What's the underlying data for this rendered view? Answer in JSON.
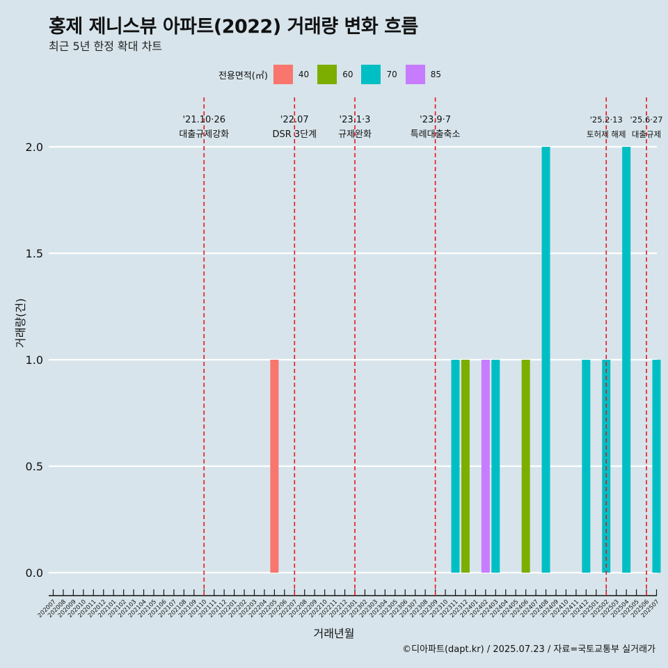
{
  "title": "홍제 제니스뷰 아파트(2022) 거래량 변화 흐름",
  "subtitle": "최근 5년 한정 확대 차트",
  "caption": "©디아파트(dapt.kr) / 2025.07.23 / 자료=국토교통부 실거래가",
  "legend": {
    "title": "전용면적(㎡)",
    "items": [
      {
        "label": "40",
        "color": "#f8766d"
      },
      {
        "label": "60",
        "color": "#7cae00"
      },
      {
        "label": "70",
        "color": "#00bfc4"
      },
      {
        "label": "85",
        "color": "#c77cff"
      }
    ]
  },
  "chart_data": {
    "type": "bar",
    "xlabel": "거래년월",
    "ylabel": "거래량(건)",
    "ylim": [
      0,
      2.0
    ],
    "yticks": [
      "0.0",
      "0.5",
      "1.0",
      "1.5",
      "2.0"
    ],
    "legend_position": "top",
    "grid": true,
    "categories": [
      "202007",
      "202008",
      "202009",
      "202010",
      "202011",
      "202012",
      "202101",
      "202102",
      "202103",
      "202104",
      "202105",
      "202106",
      "202107",
      "202108",
      "202109",
      "202110",
      "202111",
      "202112",
      "202201",
      "202202",
      "202203",
      "202204",
      "202205",
      "202206",
      "202207",
      "202208",
      "202209",
      "202210",
      "202211",
      "202212",
      "202301",
      "202302",
      "202303",
      "202304",
      "202305",
      "202306",
      "202307",
      "202308",
      "202309",
      "202310",
      "202311",
      "202312",
      "202401",
      "202402",
      "202403",
      "202404",
      "202405",
      "202406",
      "202407",
      "202408",
      "202409",
      "202410",
      "202411",
      "202412",
      "202501",
      "202502",
      "202503",
      "202504",
      "202505",
      "202506",
      "202507"
    ],
    "bars": [
      {
        "month": "202205",
        "area": "40",
        "value": 0
      },
      {
        "month": "202205",
        "area": "40",
        "value": 1
      },
      {
        "month": "202309",
        "area": "70",
        "value": 0
      },
      {
        "month": "202311",
        "area": "70",
        "value": 1
      },
      {
        "month": "202312",
        "area": "60",
        "value": 1
      },
      {
        "month": "202402",
        "area": "85",
        "value": 1
      },
      {
        "month": "202403",
        "area": "70",
        "value": 1
      },
      {
        "month": "202406",
        "area": "60",
        "value": 1
      },
      {
        "month": "202408",
        "area": "70",
        "value": 2
      },
      {
        "month": "202412",
        "area": "70",
        "value": 1
      },
      {
        "month": "202502",
        "area": "70",
        "value": 1
      },
      {
        "month": "202504",
        "area": "70",
        "value": 2
      },
      {
        "month": "202507",
        "area": "70",
        "value": 1
      }
    ],
    "annotations": [
      {
        "month": "202110",
        "date": "'21.10·26",
        "label": "대출규제강화"
      },
      {
        "month": "202207",
        "date": "'22.07",
        "label": "DSR 3단계"
      },
      {
        "month": "202301",
        "date": "'23.1·3",
        "label": "규제완화"
      },
      {
        "month": "202309",
        "date": "'23.9·7",
        "label": "특례대출축소"
      },
      {
        "month": "202502",
        "date": "'25.2·13",
        "label": "토허제 해제"
      },
      {
        "month": "202506",
        "date": "'25.6·27",
        "label": "대출규제"
      }
    ]
  }
}
